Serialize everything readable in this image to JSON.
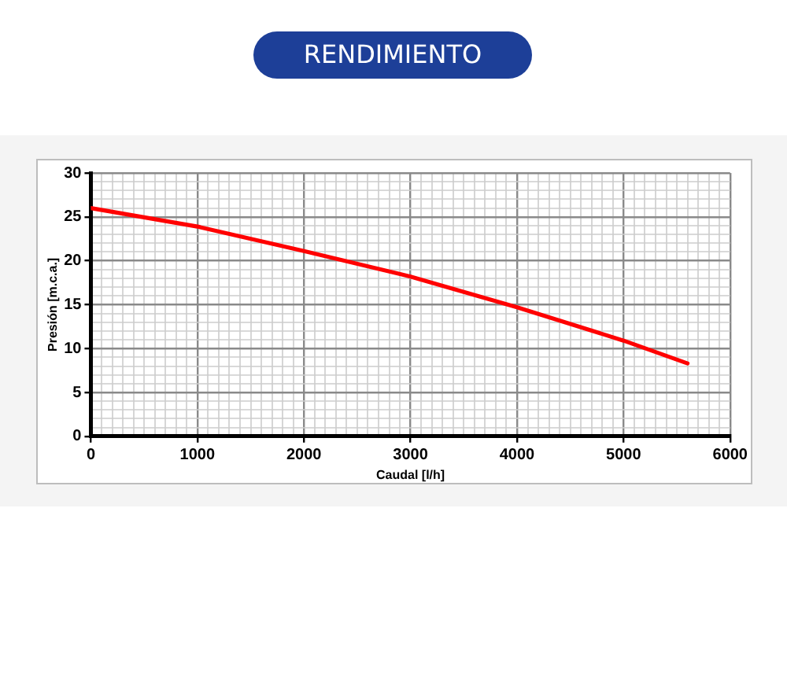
{
  "chart_data": {
    "type": "line",
    "title": "RENDIMIENTO",
    "xlabel": "Caudal [l/h]",
    "ylabel": "Presión [m.c.a.]",
    "x": [
      0,
      1000,
      2000,
      3000,
      4000,
      5000,
      5600
    ],
    "series": [
      {
        "color": "#ff0000",
        "values": [
          26,
          23.9,
          21.1,
          18.2,
          14.7,
          10.9,
          8.3
        ]
      }
    ],
    "xlim": [
      0,
      6000
    ],
    "ylim": [
      0,
      30
    ],
    "xticks": [
      0,
      {
        "value": 100,
        "label": null
      },
      {
        "value": 200,
        "label": null
      },
      {
        "value": 300,
        "label": null
      },
      {
        "value": 400,
        "label": null
      },
      {
        "value": 500,
        "label": null
      },
      {
        "value": 600,
        "label": null
      },
      {
        "value": 700,
        "label": null
      },
      {
        "value": 800,
        "label": null
      },
      {
        "value": 900,
        "label": null
      },
      1000,
      {
        "value": 1100,
        "label": null
      },
      {
        "value": 1200,
        "label": null
      },
      {
        "value": 1300,
        "label": null
      },
      {
        "value": 1400,
        "label": null
      },
      {
        "value": 1500,
        "label": null
      },
      {
        "value": 1600,
        "label": null
      },
      {
        "value": 1700,
        "label": null
      },
      {
        "value": 1800,
        "label": null
      },
      {
        "value": 1900,
        "label": null
      },
      2000,
      {
        "value": 2100,
        "label": null
      },
      {
        "value": 2200,
        "label": null
      },
      {
        "value": 2300,
        "label": null
      },
      {
        "value": 2400,
        "label": null
      },
      {
        "value": 2500,
        "label": null
      },
      {
        "value": 2600,
        "label": null
      },
      {
        "value": 2700,
        "label": null
      },
      {
        "value": 2800,
        "label": null
      },
      {
        "value": 2900,
        "label": null
      },
      3000,
      {
        "value": 3100,
        "label": null
      },
      {
        "value": 3200,
        "label": null
      },
      {
        "value": 3300,
        "label": null
      },
      {
        "value": 3400,
        "label": null
      },
      {
        "value": 3500,
        "label": null
      },
      {
        "value": 3600,
        "label": null
      },
      {
        "value": 3700,
        "label": null
      },
      {
        "value": 3800,
        "label": null
      },
      {
        "value": 3900,
        "label": null
      },
      4000,
      {
        "value": 4100,
        "label": null
      },
      {
        "value": 4200,
        "label": null
      },
      {
        "value": 4300,
        "label": null
      },
      {
        "value": 4400,
        "label": null
      },
      {
        "value": 4500,
        "label": null
      },
      {
        "value": 4600,
        "label": null
      },
      {
        "value": 4700,
        "label": null
      },
      {
        "value": 4800,
        "label": null
      },
      {
        "value": 4900,
        "label": null
      },
      5000,
      {
        "value": 5100,
        "label": null
      },
      {
        "value": 5200,
        "label": null
      },
      {
        "value": 5300,
        "label": null
      },
      {
        "value": 5400,
        "label": null
      },
      {
        "value": 5500,
        "label": null
      },
      {
        "value": 5600,
        "label": null
      },
      {
        "value": 5700,
        "label": null
      },
      {
        "value": 5800,
        "label": null
      },
      {
        "value": 5900,
        "label": null
      },
      6000
    ],
    "yticks": [
      0,
      {
        "value": 1,
        "label": null
      },
      {
        "value": 2,
        "label": null
      },
      {
        "value": 3,
        "label": null
      },
      {
        "value": 4,
        "label": null
      },
      5,
      {
        "value": 6,
        "label": null
      },
      {
        "value": 7,
        "label": null
      },
      {
        "value": 8,
        "label": null
      },
      {
        "value": 9,
        "label": null
      },
      10,
      {
        "value": 11,
        "label": null
      },
      {
        "value": 12,
        "label": null
      },
      {
        "value": 13,
        "label": null
      },
      {
        "value": 14,
        "label": null
      },
      15,
      {
        "value": 16,
        "label": null
      },
      {
        "value": 17,
        "label": null
      },
      {
        "value": 18,
        "label": null
      },
      {
        "value": 19,
        "label": null
      },
      20,
      {
        "value": 21,
        "label": null
      },
      {
        "value": 22,
        "label": null
      },
      {
        "value": 23,
        "label": null
      },
      {
        "value": 24,
        "label": null
      },
      25,
      {
        "value": 26,
        "label": null
      },
      {
        "value": 27,
        "label": null
      },
      {
        "value": 28,
        "label": null
      },
      {
        "value": 29,
        "label": null
      },
      30
    ],
    "grid": true,
    "legend": false,
    "marker": "none",
    "line_style": "solid"
  }
}
